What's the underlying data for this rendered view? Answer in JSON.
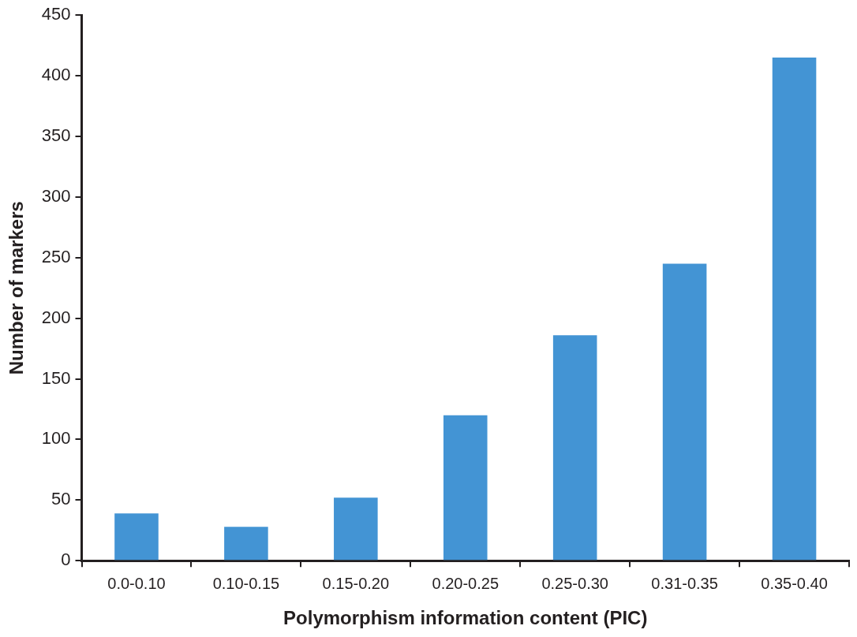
{
  "chart_data": {
    "type": "bar",
    "xlabel": "Polymorphism information content (PIC)",
    "ylabel": "Number of markers",
    "categories": [
      "0.0-0.10",
      "0.10-0.15",
      "0.15-0.20",
      "0.20-0.25",
      "0.25-0.30",
      "0.31-0.35",
      "0.35-0.40"
    ],
    "values": [
      39,
      28,
      52,
      120,
      186,
      245,
      415
    ],
    "color": "#4394d4",
    "ylim": [
      0,
      450
    ],
    "yticks": [
      0,
      50,
      100,
      150,
      200,
      250,
      300,
      350,
      400,
      450
    ],
    "grid": false,
    "legend": false
  }
}
